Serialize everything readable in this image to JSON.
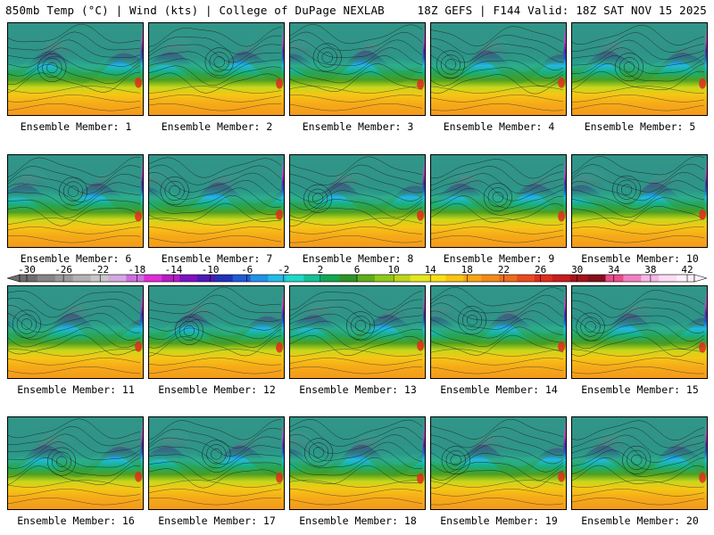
{
  "header": {
    "left": "850mb Temp (°C) | Wind (kts) | College of DuPage NEXLAB",
    "right": "18Z GEFS | F144 Valid: 18Z SAT NOV 15 2025"
  },
  "colorbar": {
    "ticks": [
      "-30",
      "-26",
      "-22",
      "-18",
      "-14",
      "-10",
      "-6",
      "-2",
      "2",
      "6",
      "10",
      "14",
      "18",
      "22",
      "26",
      "30",
      "34",
      "38",
      "42"
    ],
    "colors": [
      "#6d6d6d",
      "#858585",
      "#9a9a9a",
      "#b2b2b2",
      "#c8c8c8",
      "#d3a9e0",
      "#cd6ee0",
      "#e02bd8",
      "#b51cc6",
      "#7d12c2",
      "#4e19b4",
      "#2131b9",
      "#1f5cd5",
      "#2391e8",
      "#21bde6",
      "#1fd9c8",
      "#13c197",
      "#13a653",
      "#2c9424",
      "#5fad1c",
      "#8ec91a",
      "#bcd61a",
      "#e3e81c",
      "#f8e014",
      "#fbc312",
      "#f8a514",
      "#f28a17",
      "#ee6c1c",
      "#e94b1e",
      "#e02b1d",
      "#c81c1e",
      "#a5131a",
      "#84101a",
      "#e84c8c",
      "#f27fc2",
      "#f6b6e6",
      "#faddf4",
      "#fff0fb"
    ]
  },
  "members": [
    {
      "caption": "Ensemble Member: 1"
    },
    {
      "caption": "Ensemble Member: 2"
    },
    {
      "caption": "Ensemble Member: 3"
    },
    {
      "caption": "Ensemble Member: 4"
    },
    {
      "caption": "Ensemble Member: 5"
    },
    {
      "caption": "Ensemble Member: 6"
    },
    {
      "caption": "Ensemble Member: 7"
    },
    {
      "caption": "Ensemble Member: 8"
    },
    {
      "caption": "Ensemble Member: 9"
    },
    {
      "caption": "Ensemble Member: 10"
    },
    {
      "caption": "Ensemble Member: 11"
    },
    {
      "caption": "Ensemble Member: 12"
    },
    {
      "caption": "Ensemble Member: 13"
    },
    {
      "caption": "Ensemble Member: 14"
    },
    {
      "caption": "Ensemble Member: 15"
    },
    {
      "caption": "Ensemble Member: 16"
    },
    {
      "caption": "Ensemble Member: 17"
    },
    {
      "caption": "Ensemble Member: 18"
    },
    {
      "caption": "Ensemble Member: 19"
    },
    {
      "caption": "Ensemble Member: 20"
    }
  ]
}
